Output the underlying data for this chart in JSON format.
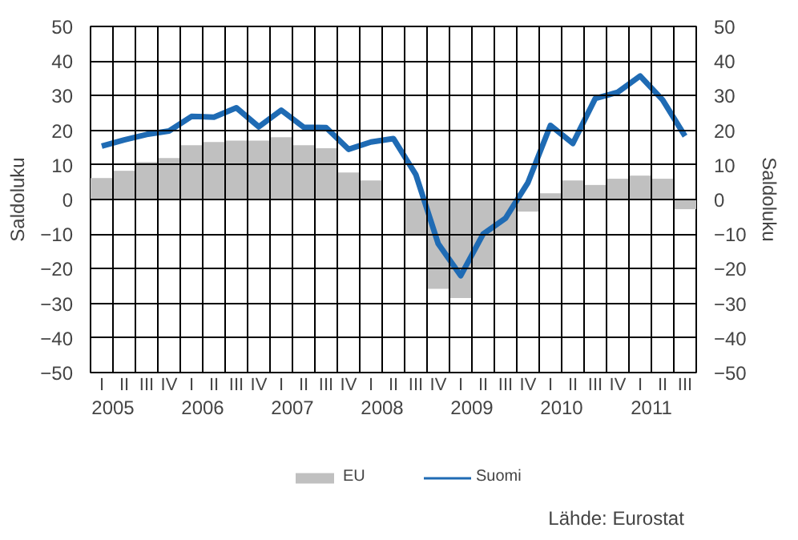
{
  "chart_data": {
    "type": "bar",
    "categories": [
      "I",
      "II",
      "III",
      "IV",
      "I",
      "II",
      "III",
      "IV",
      "I",
      "II",
      "III",
      "IV",
      "I",
      "II",
      "III",
      "IV",
      "I",
      "II",
      "III",
      "IV",
      "I",
      "II",
      "III",
      "IV",
      "I",
      "II",
      "III"
    ],
    "series": [
      {
        "name": "EU",
        "color": "#c0c0c0",
        "values": [
          6.2,
          8.3,
          10.8,
          12,
          15.7,
          16.6,
          17,
          17,
          18,
          15.7,
          14.8,
          7.8,
          5.5,
          0,
          -10.5,
          -25.8,
          -28.5,
          -19.7,
          -10.5,
          -3.5,
          1.8,
          5.5,
          4.2,
          6,
          6.9,
          6,
          -2.8
        ]
      },
      {
        "name": "Suomi",
        "type": "line",
        "color": "#1f6bb4",
        "values": [
          15.4,
          17.2,
          18.8,
          19.8,
          24,
          23.8,
          26.5,
          21,
          25.8,
          20.9,
          20.8,
          14.5,
          16.6,
          17.6,
          7.2,
          -12.8,
          -22,
          -10,
          -5.4,
          4.9,
          21.4,
          16.2,
          29.2,
          31,
          35.7,
          28.8,
          18.3
        ]
      }
    ],
    "ylabel": "Saldoluku",
    "y2label": "Saldoluku",
    "ylim": [
      -50,
      50
    ],
    "yticks": [
      -50,
      -40,
      -30,
      -20,
      -10,
      0,
      10,
      20,
      30,
      40,
      50
    ],
    "y2lim": [
      -50,
      50
    ],
    "y2ticks": [
      -50,
      -40,
      -30,
      -20,
      -10,
      0,
      10,
      20,
      30,
      40,
      50
    ],
    "annotations": [
      "2005",
      "2006",
      "2007",
      "2008",
      "2009",
      "2010",
      "2011",
      "Lähde: Eurostat"
    ],
    "grid": true,
    "legend": "bottom"
  }
}
